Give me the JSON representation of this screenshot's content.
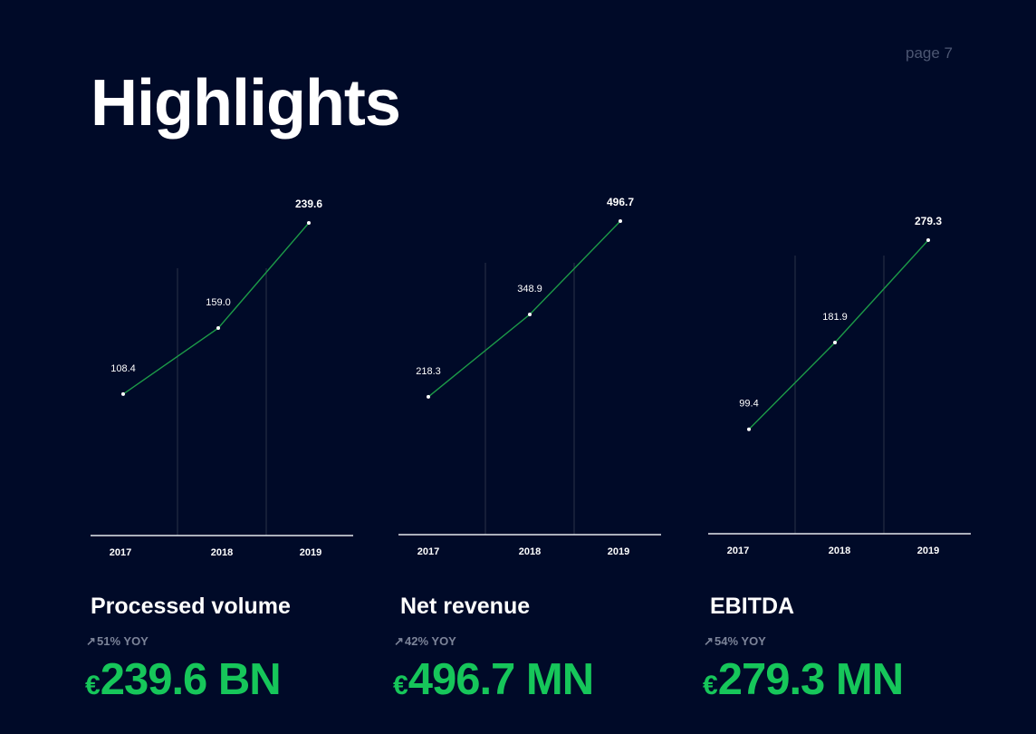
{
  "page_label": "page 7",
  "title": "Highlights",
  "colors": {
    "background": "#000a28",
    "accent": "#16c65a",
    "line": "#1c9a48",
    "muted": "#7c8499"
  },
  "metrics": [
    {
      "name": "Processed volume",
      "yoy": "51% YOY",
      "currency": "€",
      "value": "239.6 BN"
    },
    {
      "name": "Net revenue",
      "yoy": "42% YOY",
      "currency": "€",
      "value": "496.7 MN"
    },
    {
      "name": "EBITDA",
      "yoy": "54% YOY",
      "currency": "€",
      "value": "279.3 MN"
    }
  ],
  "chart_data": [
    {
      "type": "line",
      "x": [
        "2017",
        "2018",
        "2019"
      ],
      "values": [
        108.4,
        159.0,
        239.6
      ],
      "labels": [
        "108.4",
        "159.0",
        "239.6"
      ]
    },
    {
      "type": "line",
      "x": [
        "2017",
        "2018",
        "2019"
      ],
      "values": [
        218.3,
        348.9,
        496.7
      ],
      "labels": [
        "218.3",
        "348.9",
        "496.7"
      ]
    },
    {
      "type": "line",
      "x": [
        "2017",
        "2018",
        "2019"
      ],
      "values": [
        99.4,
        181.9,
        279.3
      ],
      "labels": [
        "99.4",
        "181.9",
        "279.3"
      ]
    }
  ]
}
